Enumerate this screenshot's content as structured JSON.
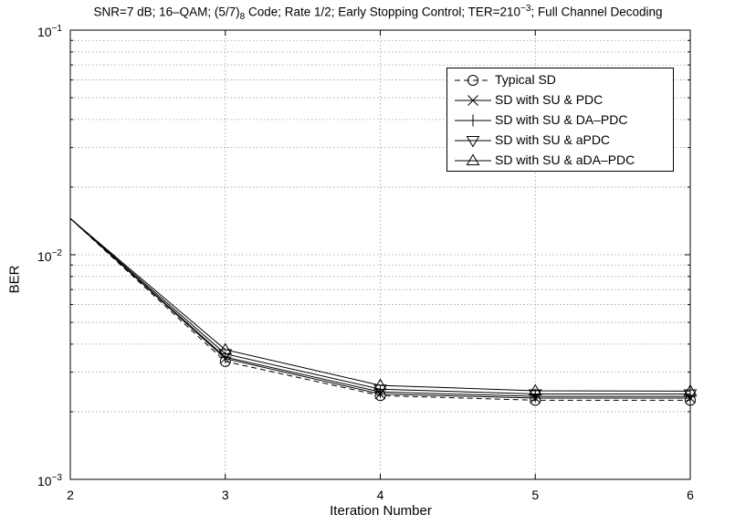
{
  "chart_data": {
    "type": "line",
    "title": {
      "part1": "SNR=7 dB; 16–QAM;  (5/7)",
      "sub": "8",
      "part2": " Code; Rate 1/2; Early Stopping Control; TER=210",
      "sup": "−3",
      "part3": "; Full Channel Decoding"
    },
    "xlabel": "Iteration Number",
    "ylabel": "BER",
    "x": [
      2,
      3,
      4,
      5,
      6
    ],
    "xlim": [
      2,
      6
    ],
    "xticks": [
      "2",
      "3",
      "4",
      "5",
      "6"
    ],
    "ylim": [
      0.001,
      0.1
    ],
    "yscale": "log",
    "yticks": [
      {
        "base": "10",
        "exp": "−3"
      },
      {
        "base": "10",
        "exp": "−2"
      },
      {
        "base": "10",
        "exp": "−1"
      }
    ],
    "grid": true,
    "legend_position": "top-right",
    "series": [
      {
        "name": "Typical SD",
        "marker": "circle",
        "dash": true,
        "values": [
          0.0145,
          0.00335,
          0.00236,
          0.00225,
          0.00225
        ]
      },
      {
        "name": "SD with SU & PDC",
        "marker": "x",
        "dash": false,
        "values": [
          0.0145,
          0.00345,
          0.0024,
          0.0023,
          0.0023
        ]
      },
      {
        "name": "SD with SU & DA–PDC",
        "marker": "plus",
        "dash": false,
        "values": [
          0.0145,
          0.0035,
          0.00245,
          0.00234,
          0.00234
        ]
      },
      {
        "name": "SD with SU & aPDC",
        "marker": "triangle-down",
        "dash": false,
        "values": [
          0.0145,
          0.00362,
          0.00252,
          0.0024,
          0.0024
        ]
      },
      {
        "name": "SD with SU & aDA–PDC",
        "marker": "triangle-up",
        "dash": false,
        "values": [
          0.0145,
          0.00378,
          0.00262,
          0.00248,
          0.00247
        ]
      }
    ]
  }
}
